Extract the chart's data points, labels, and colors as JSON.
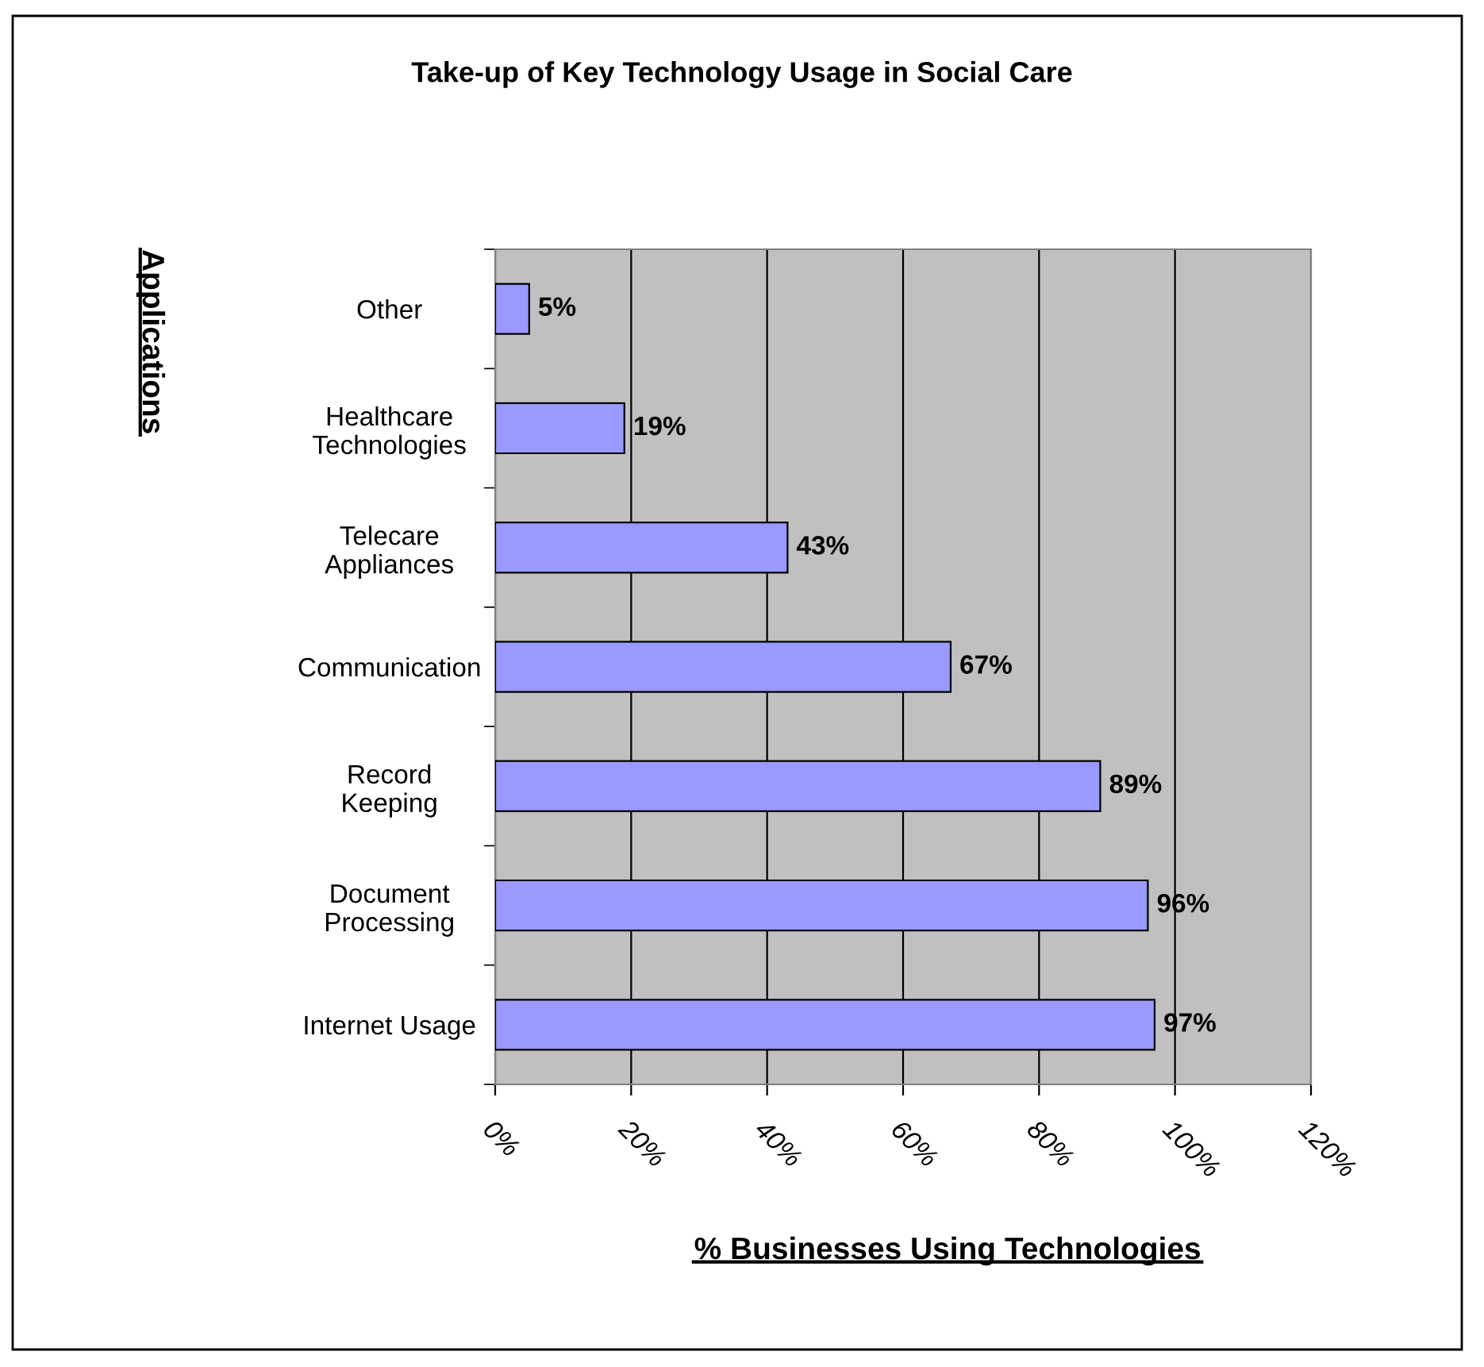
{
  "chart_data": {
    "type": "bar",
    "orientation": "horizontal",
    "title": "Take-up of Key Technology Usage in Social Care",
    "xlabel": "% Businesses Using Technologies",
    "ylabel": "Applications",
    "categories": [
      "Other",
      "Healthcare\nTechnologies",
      "Telecare\nAppliances",
      "Communication",
      "Record\nKeeping",
      "Document\nProcessing",
      "Internet Usage"
    ],
    "values": [
      5,
      19,
      43,
      67,
      89,
      96,
      97
    ],
    "value_labels": [
      "5%",
      "19%",
      "43%",
      "67%",
      "89%",
      "96%",
      "97%"
    ],
    "color": "#9999ff",
    "xlim": [
      0,
      120
    ],
    "xticks": [
      {
        "value": 0,
        "label": "0%"
      },
      {
        "value": 20,
        "label": "20%"
      },
      {
        "value": 40,
        "label": "40%"
      },
      {
        "value": 60,
        "label": "60%"
      },
      {
        "value": 80,
        "label": "80%"
      },
      {
        "value": 100,
        "label": "100%"
      },
      {
        "value": 120,
        "label": "120%"
      }
    ],
    "grid": "x",
    "legend": false
  }
}
